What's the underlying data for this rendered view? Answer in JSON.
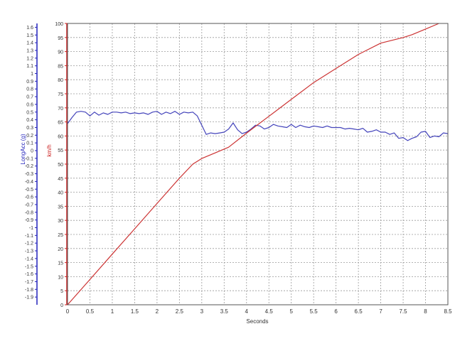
{
  "chart_data": {
    "type": "line",
    "xlabel": "Seconds",
    "xlim": [
      0,
      8.5
    ],
    "x_ticks": [
      "0",
      "0.5",
      "1",
      "1.5",
      "2",
      "2.5",
      "3",
      "3.5",
      "4",
      "4.5",
      "5",
      "5.5",
      "6",
      "6.5",
      "7",
      "7.5",
      "8",
      "8.5"
    ],
    "y_left": {
      "label": "LongAcc (g)",
      "range": [
        -2.0,
        1.65
      ],
      "color": "#2222bb",
      "ticks": [
        "1.6",
        "1.5",
        "1.4",
        "1.3",
        "1.2",
        "1.1",
        "1",
        "0.9",
        "0.8",
        "0.7",
        "0.6",
        "0.5",
        "0.4",
        "0.3",
        "0.2",
        "0.1",
        "0",
        "-0.1",
        "-0.2",
        "-0.3",
        "-0.4",
        "-0.5",
        "-0.6",
        "-0.7",
        "-0.8",
        "-0.9",
        "-1",
        "-1.1",
        "-1.2",
        "-1.3",
        "-1.4",
        "-1.5",
        "-1.6",
        "-1.7",
        "-1.8",
        "-1.9"
      ]
    },
    "y_right": {
      "label": "km/h",
      "range": [
        0,
        100
      ],
      "color": "#cc2222",
      "ticks": [
        "100",
        "95",
        "90",
        "85",
        "80",
        "75",
        "70",
        "65",
        "60",
        "55",
        "50",
        "45",
        "40",
        "35",
        "30",
        "25",
        "20",
        "15",
        "10",
        "5",
        "0"
      ]
    },
    "series": [
      {
        "axis": "left",
        "color": "#4444bb",
        "x": [
          0,
          0.1,
          0.2,
          0.3,
          0.4,
          0.5,
          0.6,
          0.7,
          0.8,
          0.9,
          1.0,
          1.1,
          1.2,
          1.3,
          1.4,
          1.5,
          1.6,
          1.7,
          1.8,
          1.9,
          2.0,
          2.1,
          2.2,
          2.3,
          2.4,
          2.5,
          2.6,
          2.7,
          2.8,
          2.9,
          3.0,
          3.1,
          3.2,
          3.3,
          3.4,
          3.5,
          3.6,
          3.7,
          3.8,
          3.9,
          4.0,
          4.1,
          4.2,
          4.3,
          4.4,
          4.5,
          4.6,
          4.7,
          4.8,
          4.9,
          5.0,
          5.1,
          5.2,
          5.3,
          5.4,
          5.5,
          5.6,
          5.7,
          5.8,
          5.9,
          6.0,
          6.1,
          6.2,
          6.3,
          6.4,
          6.5,
          6.6,
          6.7,
          6.8,
          6.9,
          7.0,
          7.1,
          7.2,
          7.3,
          7.4,
          7.5,
          7.6,
          7.7,
          7.8,
          7.9,
          8.0,
          8.1,
          8.2,
          8.3,
          8.4,
          8.5
        ],
        "values": [
          0.35,
          0.43,
          0.5,
          0.51,
          0.5,
          0.45,
          0.5,
          0.46,
          0.49,
          0.47,
          0.5,
          0.5,
          0.49,
          0.5,
          0.48,
          0.49,
          0.48,
          0.49,
          0.47,
          0.5,
          0.51,
          0.47,
          0.5,
          0.48,
          0.51,
          0.47,
          0.5,
          0.49,
          0.5,
          0.45,
          0.33,
          0.21,
          0.23,
          0.22,
          0.23,
          0.24,
          0.28,
          0.36,
          0.27,
          0.22,
          0.24,
          0.28,
          0.33,
          0.32,
          0.28,
          0.3,
          0.34,
          0.32,
          0.31,
          0.3,
          0.34,
          0.3,
          0.33,
          0.31,
          0.3,
          0.32,
          0.31,
          0.3,
          0.32,
          0.3,
          0.3,
          0.3,
          0.28,
          0.29,
          0.28,
          0.27,
          0.29,
          0.24,
          0.25,
          0.27,
          0.24,
          0.24,
          0.21,
          0.23,
          0.16,
          0.17,
          0.13,
          0.16,
          0.18,
          0.24,
          0.25,
          0.17,
          0.19,
          0.18,
          0.23,
          0.22
        ]
      },
      {
        "axis": "right",
        "color": "#cc3333",
        "x": [
          0,
          0.5,
          1.0,
          1.5,
          2.0,
          2.5,
          2.8,
          3.0,
          3.3,
          3.6,
          4.0,
          4.5,
          5.0,
          5.5,
          6.0,
          6.5,
          7.0,
          7.5,
          7.7,
          8.0,
          8.3
        ],
        "values": [
          0,
          9,
          18,
          27,
          36,
          45,
          50,
          52,
          54,
          56,
          61,
          67,
          73,
          79,
          84,
          89,
          93,
          95,
          96,
          98,
          100
        ]
      }
    ]
  }
}
